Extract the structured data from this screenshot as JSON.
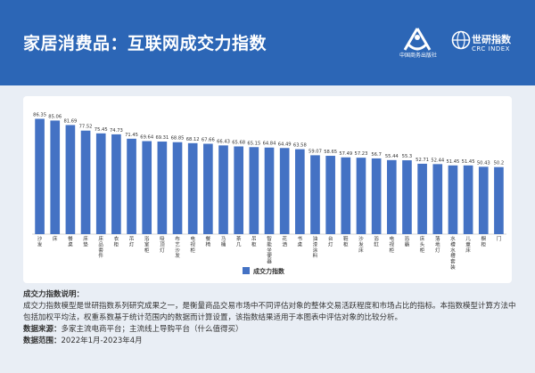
{
  "header": {
    "title": "家居消费品：互联网成交力指数",
    "logo1_text": "中国商务出版社",
    "logo2_cn": "世研指数",
    "logo2_en": "CRC INDEX"
  },
  "colors": {
    "header_bg": "#2c66b6",
    "bar": "#4472c4",
    "page_bg": "#e9eef5"
  },
  "chart_data": {
    "type": "bar",
    "categories": [
      "沙发",
      "床",
      "餐桌",
      "床垫",
      "床品套件",
      "衣柜",
      "吊灯",
      "浴室柜",
      "吸顶灯",
      "布艺沙发",
      "电视柜",
      "餐椅",
      "马桶",
      "茶几",
      "吊柜",
      "智能坐便器",
      "花洒",
      "书桌",
      "油漆涂料",
      "台灯",
      "鞋柜",
      "沙发床",
      "浴缸",
      "电视柜",
      "浴霸",
      "床头柜",
      "落地灯",
      "水槽水槽套装",
      "儿童床",
      "橱柜",
      "门"
    ],
    "series": [
      {
        "name": "成交力指数",
        "values": [
          86.35,
          85.06,
          81.69,
          77.52,
          75.45,
          74.73,
          71.45,
          69.64,
          69.31,
          68.85,
          68.12,
          67.66,
          66.43,
          65.68,
          65.15,
          64.84,
          64.49,
          63.58,
          59.07,
          58.65,
          57.49,
          57.23,
          56.7,
          55.44,
          55.3,
          52.71,
          52.44,
          51.45,
          51.45,
          50.43,
          50.2
        ]
      }
    ],
    "ylim": [
      0,
      90
    ],
    "legend": "bottom"
  },
  "notes": {
    "h1": "成交力指数说明：",
    "p1": "成交力指数模型是世研指数系列研究成果之一，是衡量商品交易市场中不同评估对象的整体交易活跃程度和市场占比的指标。本指数模型计算方法中包括加权平均法，权重系数基于统计范围内的数据而计算设置，该指数结果适用于本图表中评估对象的比较分析。",
    "src_label": "数据来源：",
    "src_text": "多家主流电商平台；主流线上导购平台（什么值得买）",
    "range_label": "数据范围：",
    "range_text": "2022年1月-2023年4月"
  }
}
